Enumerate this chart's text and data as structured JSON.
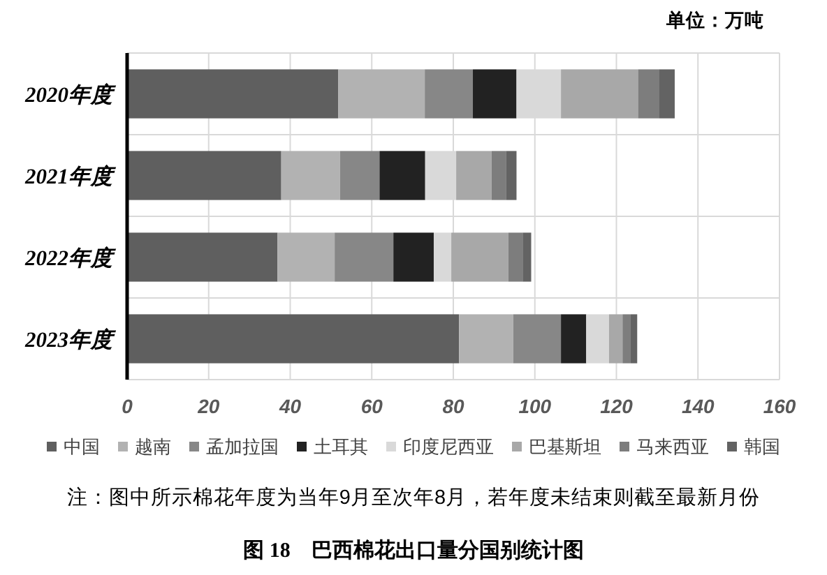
{
  "chart_data": {
    "type": "bar",
    "orientation": "horizontal",
    "stacked": true,
    "title": "图 18　巴西棉花出口量分国别统计图",
    "annotations": [
      "单位：万吨",
      "注：图中所示棉花年度为当年9月至次年8月，若年度未结束则截至最新月份"
    ],
    "categories": [
      "2020年度",
      "2021年度",
      "2022年度",
      "2023年度"
    ],
    "series": [
      {
        "name": "中国",
        "color": "#5f5f5f",
        "values": [
          51.8,
          37.8,
          36.9,
          81.4
        ]
      },
      {
        "name": "越南",
        "color": "#b2b2b2",
        "values": [
          21.2,
          14.4,
          14.0,
          13.3
        ]
      },
      {
        "name": "孟加拉国",
        "color": "#878787",
        "values": [
          11.8,
          9.7,
          14.4,
          11.7
        ]
      },
      {
        "name": "土耳其",
        "color": "#222222",
        "values": [
          10.7,
          11.2,
          9.9,
          6.2
        ]
      },
      {
        "name": "印度尼西亚",
        "color": "#d9d9d9",
        "values": [
          10.9,
          7.6,
          4.3,
          5.6
        ]
      },
      {
        "name": "巴基斯坦",
        "color": "#a8a8a8",
        "values": [
          18.9,
          8.7,
          14.0,
          3.3
        ]
      },
      {
        "name": "马来西亚",
        "color": "#7d7d7d",
        "values": [
          5.1,
          3.6,
          3.5,
          2.0
        ]
      },
      {
        "name": "韩国",
        "color": "#636363",
        "values": [
          3.9,
          2.5,
          2.1,
          1.6
        ]
      }
    ],
    "xlim": [
      0,
      160
    ],
    "xticks": [
      0,
      20,
      40,
      60,
      80,
      100,
      120,
      140,
      160
    ],
    "grid": true,
    "legend": "bottom"
  }
}
